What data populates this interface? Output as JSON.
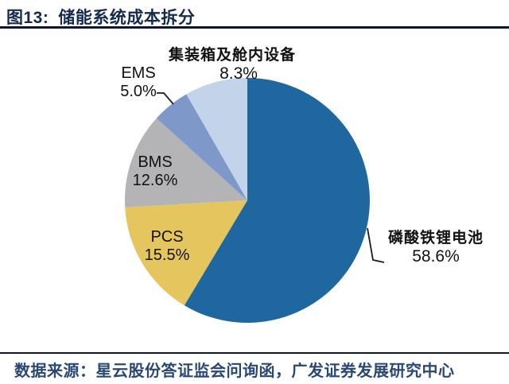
{
  "figure": {
    "title_prefix": "图13:",
    "title_text": "储能系统成本拆分"
  },
  "source": {
    "text": "数据来源：星云股份答证监会问询函，广发证券发展研究中心"
  },
  "colors": {
    "title_navy": "#16294E",
    "rule_dark": "#0E1626",
    "source_navy": "#2A4875",
    "label_black": "#111111"
  },
  "chart_data": {
    "type": "pie",
    "title": "储能系统成本拆分",
    "start_angle_deg": 0,
    "direction": "clockwise",
    "legend_position": "none",
    "slices": [
      {
        "key": "lfp-battery",
        "label": "磷酸铁锂电池",
        "value": 58.6,
        "display": "58.6%",
        "color": "#1E689F"
      },
      {
        "key": "pcs",
        "label": "PCS",
        "value": 15.5,
        "display": "15.5%",
        "color": "#E4C55E"
      },
      {
        "key": "bms",
        "label": "BMS",
        "value": 12.6,
        "display": "12.6%",
        "color": "#B4B4B6"
      },
      {
        "key": "ems",
        "label": "EMS",
        "value": 5.0,
        "display": "5.0%",
        "color": "#7E99C9"
      },
      {
        "key": "container-equipment",
        "label": "集装箱及舱内设备",
        "value": 8.3,
        "display": "8.3%",
        "color": "#C3D3E9"
      }
    ]
  }
}
